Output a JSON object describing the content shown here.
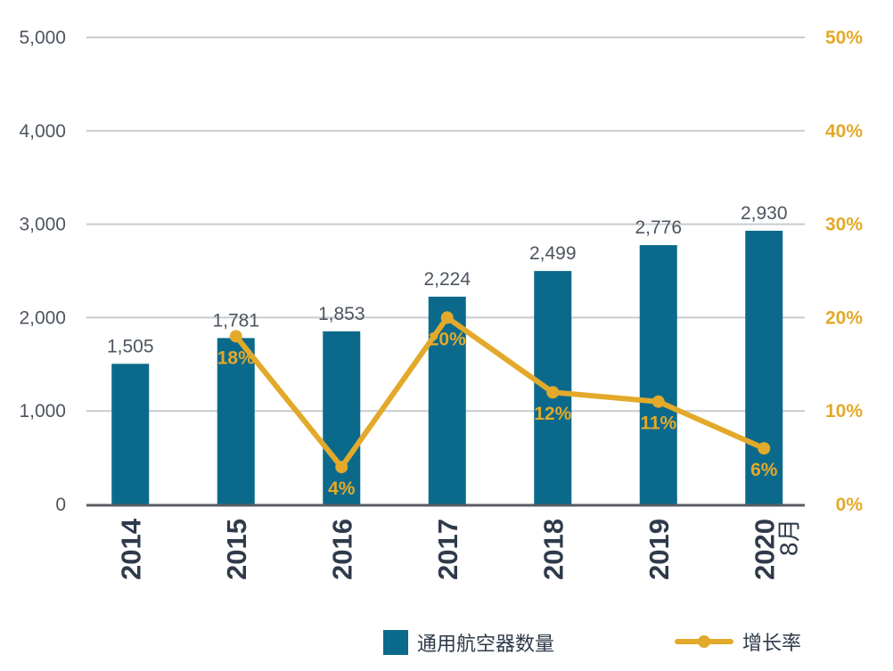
{
  "chart_data": {
    "type": "bar",
    "categories": [
      "2014",
      "2015",
      "2016",
      "2017",
      "2018",
      "2019",
      "2020"
    ],
    "category_sublabels": [
      "",
      "",
      "",
      "",
      "",
      "",
      "8月"
    ],
    "series": [
      {
        "name": "通用航空器数量",
        "type": "bar",
        "axis": "left",
        "color": "#0b6a8c",
        "values": [
          1505,
          1781,
          1853,
          2224,
          2499,
          2776,
          2930
        ],
        "labels": [
          "1,505",
          "1,781",
          "1,853",
          "2,224",
          "2,499",
          "2,776",
          "2,930"
        ]
      },
      {
        "name": "增长率",
        "type": "line",
        "axis": "right",
        "color": "#e3a92a",
        "values": [
          null,
          18,
          4,
          20,
          12,
          11,
          6
        ],
        "labels": [
          "",
          "18%",
          "4%",
          "20%",
          "12%",
          "11%",
          "6%"
        ]
      }
    ],
    "y_left": {
      "ylim": [
        0,
        5000
      ],
      "ticks": [
        0,
        1000,
        2000,
        3000,
        4000,
        5000
      ],
      "tick_labels": [
        "0",
        "1,000",
        "2,000",
        "3,000",
        "4,000",
        "5,000"
      ]
    },
    "y_right": {
      "ylim": [
        0,
        50
      ],
      "ticks": [
        0,
        10,
        20,
        30,
        40,
        50
      ],
      "tick_labels": [
        "0%",
        "10%",
        "20%",
        "30%",
        "40%",
        "50%"
      ]
    },
    "grid": true,
    "legend": {
      "position": "bottom",
      "items": [
        {
          "label": "通用航空器数量",
          "symbol": "square",
          "color": "#0b6a8c"
        },
        {
          "label": "增长率",
          "symbol": "line-marker",
          "color": "#e3a92a"
        }
      ]
    },
    "title": "",
    "xlabel": "",
    "ylabel": ""
  }
}
